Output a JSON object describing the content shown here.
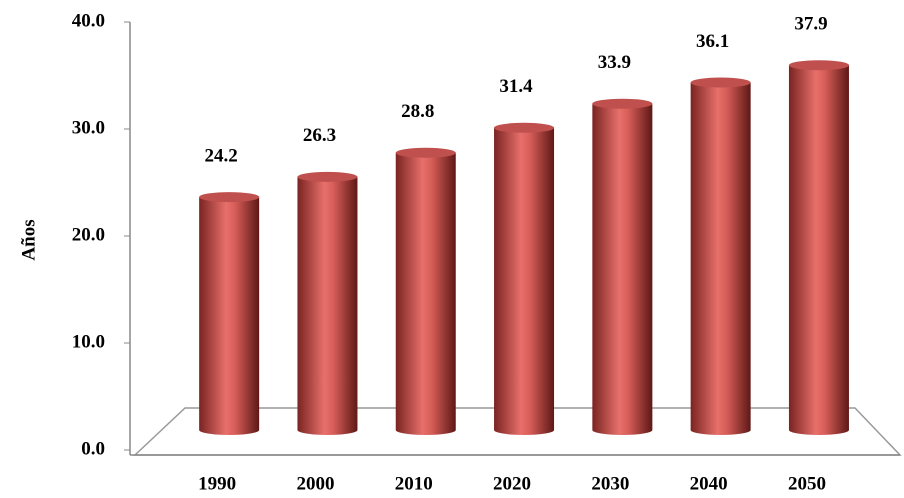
{
  "chart_data": {
    "type": "bar",
    "y_label": "Años",
    "categories": [
      "1990",
      "2000",
      "2010",
      "2020",
      "2030",
      "2040",
      "2050"
    ],
    "values": [
      24.2,
      26.3,
      28.8,
      31.4,
      33.9,
      36.1,
      37.9
    ],
    "color": "#c0504d",
    "ylim": [
      0,
      40
    ],
    "yticks": [
      {
        "value": 0,
        "label": "0.0"
      },
      {
        "value": 10,
        "label": "10.0"
      },
      {
        "value": 20,
        "label": "20.0"
      },
      {
        "value": 30,
        "label": "30.0"
      },
      {
        "value": 40,
        "label": "40.0"
      }
    ]
  }
}
